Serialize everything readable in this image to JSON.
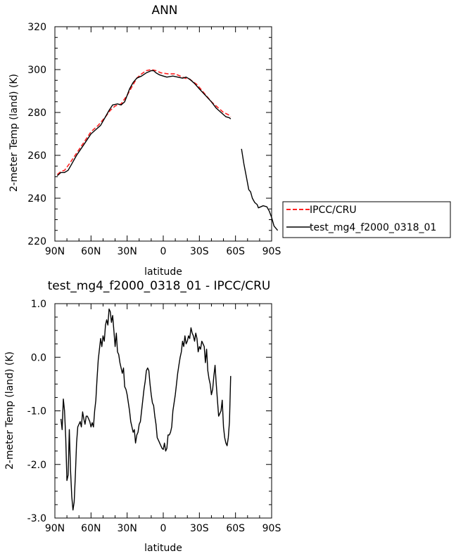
{
  "chart_data": [
    {
      "type": "line",
      "title": "ANN",
      "xlabel": "latitude",
      "ylabel": "2-meter Temp (land) (K)",
      "xlim": [
        90,
        -90
      ],
      "ylim": [
        220,
        320
      ],
      "x_ticks": [
        90,
        60,
        30,
        0,
        -30,
        -60,
        -90
      ],
      "x_tick_labels": [
        "90N",
        "60N",
        "30N",
        "0",
        "30S",
        "60S",
        "90S"
      ],
      "y_ticks": [
        220,
        240,
        260,
        280,
        300,
        320
      ],
      "y_tick_labels": [
        "220",
        "240",
        "260",
        "280",
        "300",
        "320"
      ],
      "legend": {
        "placement": "right"
      },
      "series": [
        {
          "name": "IPCC/CRU",
          "color": "#ff2020",
          "dash": "dashed",
          "segments": [
            [
              [
                88,
                251
              ],
              [
                85,
                252.5
              ],
              [
                82,
                253
              ],
              [
                78,
                256
              ],
              [
                72,
                261
              ],
              [
                66,
                266
              ],
              [
                60,
                271
              ],
              [
                54,
                274
              ],
              [
                48,
                278
              ],
              [
                44,
                281
              ],
              [
                40,
                283
              ],
              [
                35,
                284
              ],
              [
                30,
                288
              ],
              [
                26,
                292
              ],
              [
                22,
                296
              ],
              [
                18,
                298
              ],
              [
                14,
                299.5
              ],
              [
                10,
                300
              ],
              [
                6,
                299.5
              ],
              [
                2,
                298.5
              ],
              [
                -4,
                298
              ],
              [
                -10,
                298
              ],
              [
                -14,
                297
              ],
              [
                -18,
                296
              ],
              [
                -22,
                295.5
              ],
              [
                -28,
                293
              ],
              [
                -34,
                289
              ],
              [
                -40,
                285
              ],
              [
                -46,
                282
              ],
              [
                -50,
                280
              ],
              [
                -54,
                279
              ],
              [
                -56,
                278
              ]
            ]
          ]
        },
        {
          "name": "test_mg4_f2000_0318_01",
          "color": "#000000",
          "dash": "solid",
          "segments": [
            [
              [
                88,
                250.5
              ],
              [
                85,
                252
              ],
              [
                82,
                252
              ],
              [
                79,
                253
              ],
              [
                76,
                256
              ],
              [
                72,
                260
              ],
              [
                66,
                265
              ],
              [
                60,
                270
              ],
              [
                56,
                272
              ],
              [
                52,
                274
              ],
              [
                48,
                278
              ],
              [
                45,
                281
              ],
              [
                42,
                283.5
              ],
              [
                38,
                284
              ],
              [
                35,
                283.5
              ],
              [
                32,
                285
              ],
              [
                30,
                288
              ],
              [
                28,
                291
              ],
              [
                25,
                294
              ],
              [
                22,
                296
              ],
              [
                18,
                297
              ],
              [
                14,
                298.5
              ],
              [
                10,
                299.5
              ],
              [
                8,
                299.5
              ],
              [
                6,
                298.5
              ],
              [
                3,
                297.5
              ],
              [
                0,
                297
              ],
              [
                -3,
                296.5
              ],
              [
                -8,
                297
              ],
              [
                -12,
                296.5
              ],
              [
                -16,
                296
              ],
              [
                -19,
                296.5
              ],
              [
                -22,
                295.5
              ],
              [
                -26,
                293.5
              ],
              [
                -30,
                291
              ],
              [
                -35,
                288
              ],
              [
                -40,
                285
              ],
              [
                -44,
                282
              ],
              [
                -48,
                280
              ],
              [
                -50,
                279
              ],
              [
                -52,
                278
              ],
              [
                -55,
                277.5
              ],
              [
                -56,
                277
              ]
            ],
            [
              [
                -65,
                263
              ],
              [
                -67,
                256
              ],
              [
                -69,
                250
              ],
              [
                -71,
                244
              ],
              [
                -72.5,
                243
              ],
              [
                -74,
                240
              ],
              [
                -76,
                238
              ],
              [
                -78,
                237
              ],
              [
                -79,
                235.5
              ],
              [
                -81,
                236
              ],
              [
                -83,
                236.5
              ],
              [
                -86,
                236
              ],
              [
                -88,
                234
              ],
              [
                -90,
                231
              ],
              [
                -92,
                227
              ],
              [
                -95,
                225
              ]
            ]
          ]
        }
      ]
    },
    {
      "type": "line",
      "title": "test_mg4_f2000_0318_01 - IPCC/CRU",
      "xlabel": "latitude",
      "ylabel": "2-meter Temp (land) (K)",
      "xlim": [
        90,
        -90
      ],
      "ylim": [
        -3.0,
        1.0
      ],
      "x_ticks": [
        90,
        60,
        30,
        0,
        -30,
        -60,
        -90
      ],
      "x_tick_labels": [
        "90N",
        "60N",
        "30N",
        "0",
        "30S",
        "60S",
        "90S"
      ],
      "y_ticks": [
        -3.0,
        -2.0,
        -1.0,
        0.0,
        1.0
      ],
      "y_tick_labels": [
        "-3.0",
        "-2.0",
        "-1.0",
        "0.0",
        "1.0"
      ],
      "series": [
        {
          "color": "#000000",
          "dash": "solid",
          "segments": [
            [
              [
                85,
                -1.15
              ],
              [
                84,
                -1.35
              ],
              [
                83,
                -0.78
              ],
              [
                82,
                -1.0
              ],
              [
                81,
                -1.5
              ],
              [
                80,
                -2.3
              ],
              [
                79,
                -2.2
              ],
              [
                78,
                -1.35
              ],
              [
                77,
                -2.1
              ],
              [
                76,
                -2.6
              ],
              [
                75,
                -2.85
              ],
              [
                74,
                -2.7
              ],
              [
                73,
                -2.2
              ],
              [
                72,
                -1.6
              ],
              [
                71,
                -1.3
              ],
              [
                70,
                -1.25
              ],
              [
                69,
                -1.2
              ],
              [
                68,
                -1.3
              ],
              [
                67,
                -1.02
              ],
              [
                66,
                -1.15
              ],
              [
                65,
                -1.25
              ],
              [
                64,
                -1.1
              ],
              [
                63,
                -1.1
              ],
              [
                62,
                -1.15
              ],
              [
                61,
                -1.2
              ],
              [
                60,
                -1.3
              ],
              [
                59,
                -1.22
              ],
              [
                58,
                -1.3
              ],
              [
                57,
                -1.0
              ],
              [
                56,
                -0.8
              ],
              [
                55,
                -0.4
              ],
              [
                54,
                -0.05
              ],
              [
                53,
                0.15
              ],
              [
                52,
                0.35
              ],
              [
                51,
                0.2
              ],
              [
                50,
                0.4
              ],
              [
                49,
                0.3
              ],
              [
                48,
                0.6
              ],
              [
                47,
                0.7
              ],
              [
                46,
                0.6
              ],
              [
                45,
                0.9
              ],
              [
                44,
                0.85
              ],
              [
                43,
                0.65
              ],
              [
                42,
                0.78
              ],
              [
                41,
                0.5
              ],
              [
                40,
                0.2
              ],
              [
                39,
                0.45
              ],
              [
                38,
                0.1
              ],
              [
                37,
                0.05
              ],
              [
                36,
                -0.1
              ],
              [
                35,
                -0.2
              ],
              [
                34,
                -0.3
              ],
              [
                33,
                -0.2
              ],
              [
                32,
                -0.55
              ],
              [
                31,
                -0.6
              ],
              [
                30,
                -0.7
              ],
              [
                29,
                -0.85
              ],
              [
                28,
                -1.0
              ],
              [
                27,
                -1.2
              ],
              [
                26,
                -1.3
              ],
              [
                25,
                -1.4
              ],
              [
                24,
                -1.35
              ],
              [
                23,
                -1.6
              ],
              [
                22,
                -1.45
              ],
              [
                21,
                -1.4
              ],
              [
                20,
                -1.25
              ],
              [
                19,
                -1.2
              ],
              [
                18,
                -1.0
              ],
              [
                17,
                -0.8
              ],
              [
                16,
                -0.6
              ],
              [
                15,
                -0.45
              ],
              [
                14,
                -0.25
              ],
              [
                13,
                -0.2
              ],
              [
                12,
                -0.25
              ],
              [
                11,
                -0.5
              ],
              [
                10,
                -0.7
              ],
              [
                9,
                -0.85
              ],
              [
                8,
                -0.9
              ],
              [
                7,
                -1.1
              ],
              [
                6,
                -1.25
              ],
              [
                5,
                -1.5
              ],
              [
                4,
                -1.55
              ],
              [
                3,
                -1.6
              ],
              [
                2,
                -1.65
              ],
              [
                1,
                -1.7
              ],
              [
                0,
                -1.72
              ],
              [
                -1,
                -1.6
              ],
              [
                -2,
                -1.75
              ],
              [
                -3,
                -1.7
              ],
              [
                -4,
                -1.45
              ],
              [
                -5,
                -1.45
              ],
              [
                -6,
                -1.4
              ],
              [
                -7,
                -1.3
              ],
              [
                -8,
                -1.0
              ],
              [
                -9,
                -0.85
              ],
              [
                -10,
                -0.7
              ],
              [
                -11,
                -0.5
              ],
              [
                -12,
                -0.3
              ],
              [
                -13,
                -0.15
              ],
              [
                -14,
                0.0
              ],
              [
                -15,
                0.1
              ],
              [
                -16,
                0.3
              ],
              [
                -17,
                0.2
              ],
              [
                -18,
                0.4
              ],
              [
                -19,
                0.25
              ],
              [
                -20,
                0.3
              ],
              [
                -21,
                0.4
              ],
              [
                -22,
                0.35
              ],
              [
                -23,
                0.55
              ],
              [
                -24,
                0.45
              ],
              [
                -25,
                0.4
              ],
              [
                -26,
                0.3
              ],
              [
                -27,
                0.45
              ],
              [
                -28,
                0.35
              ],
              [
                -29,
                0.1
              ],
              [
                -30,
                0.2
              ],
              [
                -31,
                0.15
              ],
              [
                -32,
                0.3
              ],
              [
                -33,
                0.25
              ],
              [
                -34,
                0.2
              ],
              [
                -35,
                -0.1
              ],
              [
                -36,
                0.15
              ],
              [
                -37,
                -0.25
              ],
              [
                -38,
                -0.4
              ],
              [
                -39,
                -0.5
              ],
              [
                -40,
                -0.7
              ],
              [
                -41,
                -0.6
              ],
              [
                -42,
                -0.35
              ],
              [
                -43,
                -0.15
              ],
              [
                -44,
                -0.5
              ],
              [
                -45,
                -0.8
              ],
              [
                -46,
                -1.1
              ],
              [
                -47,
                -1.05
              ],
              [
                -48,
                -1.0
              ],
              [
                -49,
                -0.8
              ],
              [
                -50,
                -1.3
              ],
              [
                -51,
                -1.5
              ],
              [
                -52,
                -1.6
              ],
              [
                -53,
                -1.65
              ],
              [
                -54,
                -1.5
              ],
              [
                -55,
                -1.2
              ],
              [
                -56,
                -0.35
              ]
            ]
          ]
        }
      ]
    }
  ]
}
